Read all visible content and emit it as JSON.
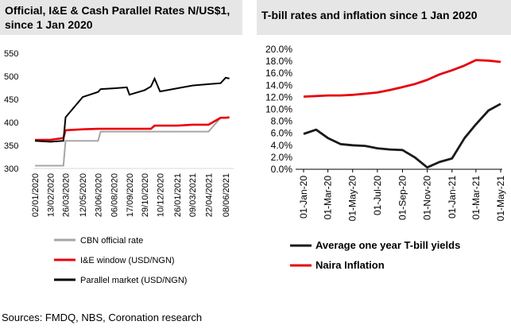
{
  "left_title": "Official, I&E & Cash Parallel Rates N/US$1, since 1 Jan 2020",
  "right_title": "T-bill rates and inflation since 1 Jan 2020",
  "sources": "Sources:  FMDQ, NBS, Coronation research",
  "colors": {
    "official": "#a6a6a6",
    "ie": "#e8000b",
    "parallel": "#000000",
    "tbill": "#1a1a1a",
    "inflation": "#e8000b"
  },
  "chart_data": [
    {
      "type": "line",
      "ylim": [
        300,
        550
      ],
      "yticks": [
        "300",
        "350",
        "400",
        "450",
        "500",
        "550"
      ],
      "xticks": [
        "02/01/2020",
        "13/02/2020",
        "26/03/2020",
        "12/05/2020",
        "23/06/2020",
        "06/08/2020",
        "17/09/2020",
        "29/10/2020",
        "10/12/2020",
        "26/01/2021",
        "09/03/2021",
        "22/04/2021",
        "08/06/2021"
      ],
      "x": [
        "02/01/2020",
        "13/02/2020",
        "20/03/2020",
        "26/03/2020",
        "12/05/2020",
        "23/06/2020",
        "30/06/2020",
        "06/08/2020",
        "10/09/2020",
        "17/09/2020",
        "29/10/2020",
        "15/11/2020",
        "25/11/2020",
        "10/12/2020",
        "26/01/2021",
        "09/03/2021",
        "22/04/2021",
        "25/05/2021",
        "08/06/2021",
        "18/06/2021"
      ],
      "series": [
        {
          "name": "CBN official rate",
          "color": "#a6a6a6",
          "values": [
            306,
            306,
            306,
            360,
            360,
            360,
            380,
            380,
            380,
            380,
            380,
            380,
            380,
            380,
            380,
            380,
            380,
            410,
            410,
            410
          ]
        },
        {
          "name": "I&E window (USD/NGN)",
          "color": "#e8000b",
          "values": [
            362,
            362,
            366,
            383,
            385,
            386,
            386,
            386,
            386,
            386,
            386,
            386,
            393,
            393,
            393,
            395,
            395,
            410,
            410,
            411
          ]
        },
        {
          "name": "Parallel market (USD/NGN)",
          "color": "#000000",
          "values": [
            360,
            358,
            360,
            411,
            455,
            466,
            472,
            474,
            476,
            460,
            470,
            478,
            495,
            467,
            474,
            480,
            483,
            485,
            497,
            495
          ]
        }
      ],
      "legend": [
        "CBN official rate",
        "I&E window (USD/NGN)",
        "Parallel market (USD/NGN)"
      ]
    },
    {
      "type": "line",
      "ylim": [
        0,
        20
      ],
      "yticks": [
        "0.0%",
        "2.0%",
        "4.0%",
        "6.0%",
        "8.0%",
        "10.0%",
        "12.0%",
        "14.0%",
        "16.0%",
        "18.0%",
        "20.0%"
      ],
      "xticks": [
        "01-Jan-20",
        "01-Mar-20",
        "01-May-20",
        "01-Jul-20",
        "01-Sep-20",
        "01-Nov-20",
        "01-Jan-21",
        "01-Mar-21",
        "01-May-21"
      ],
      "x": [
        "01-Jan-20",
        "01-Feb-20",
        "01-Mar-20",
        "01-Apr-20",
        "01-May-20",
        "01-Jun-20",
        "01-Jul-20",
        "01-Aug-20",
        "01-Sep-20",
        "01-Oct-20",
        "01-Nov-20",
        "01-Dec-20",
        "01-Jan-21",
        "01-Feb-21",
        "01-Mar-21",
        "01-Apr-21",
        "01-May-21"
      ],
      "series": [
        {
          "name": "Average one year T-bill yields",
          "color": "#1a1a1a",
          "values": [
            5.9,
            6.6,
            5.2,
            4.2,
            4.0,
            3.9,
            3.5,
            3.3,
            3.2,
            2.0,
            0.3,
            1.2,
            1.8,
            5.2,
            7.5,
            9.8,
            10.9
          ]
        },
        {
          "name": "Naira Inflation",
          "color": "#e8000b",
          "values": [
            12.1,
            12.2,
            12.3,
            12.3,
            12.4,
            12.6,
            12.8,
            13.2,
            13.7,
            14.2,
            14.9,
            15.8,
            16.5,
            17.3,
            18.2,
            18.1,
            17.9
          ]
        }
      ],
      "legend": [
        "Average one year T-bill yields",
        "Naira Inflation"
      ]
    }
  ]
}
